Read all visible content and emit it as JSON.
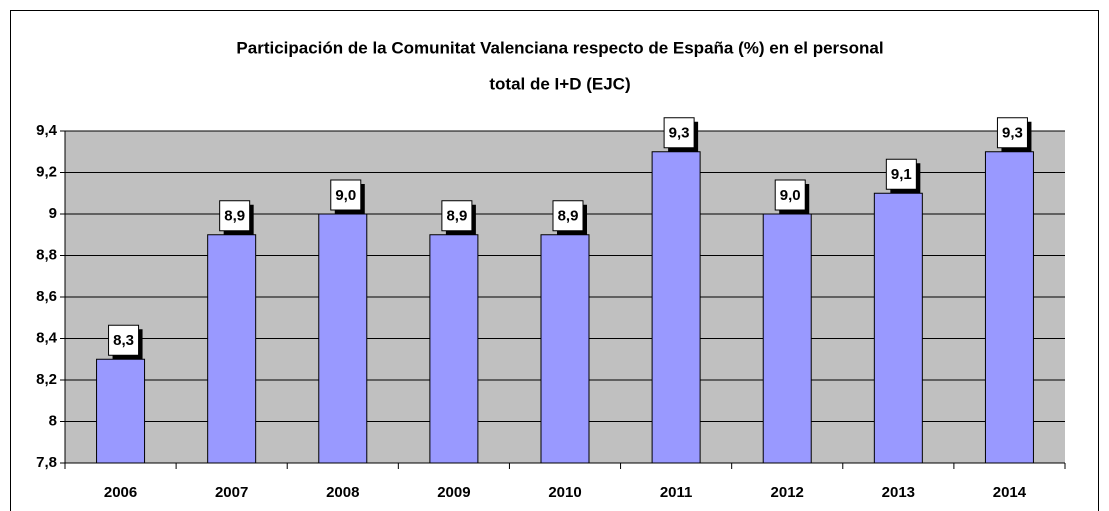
{
  "chart_data": {
    "type": "bar",
    "title": [
      "Participación de la Comunitat Valenciana respecto de España (%) en el personal",
      "total de I+D (EJC)"
    ],
    "categories": [
      "2006",
      "2007",
      "2008",
      "2009",
      "2010",
      "2011",
      "2012",
      "2013",
      "2014"
    ],
    "values": [
      8.3,
      8.9,
      9.0,
      8.9,
      8.9,
      9.3,
      9.0,
      9.1,
      9.3
    ],
    "value_labels": [
      "8,3",
      "8,9",
      "9,0",
      "8,9",
      "8,9",
      "9,3",
      "9,0",
      "9,1",
      "9,3"
    ],
    "color": "#9999ff",
    "ylim": [
      7.8,
      9.4
    ],
    "yticks": [
      {
        "value": 7.8,
        "label": "7,8"
      },
      8,
      {
        "value": 8.2,
        "label": "8,2"
      },
      {
        "value": 8.4,
        "label": "8,4"
      },
      {
        "value": 8.6,
        "label": "8,6"
      },
      {
        "value": 8.8,
        "label": "8,8"
      },
      9,
      {
        "value": 9.2,
        "label": "9,2"
      },
      {
        "value": 9.4,
        "label": "9,4"
      }
    ],
    "grid": true
  }
}
